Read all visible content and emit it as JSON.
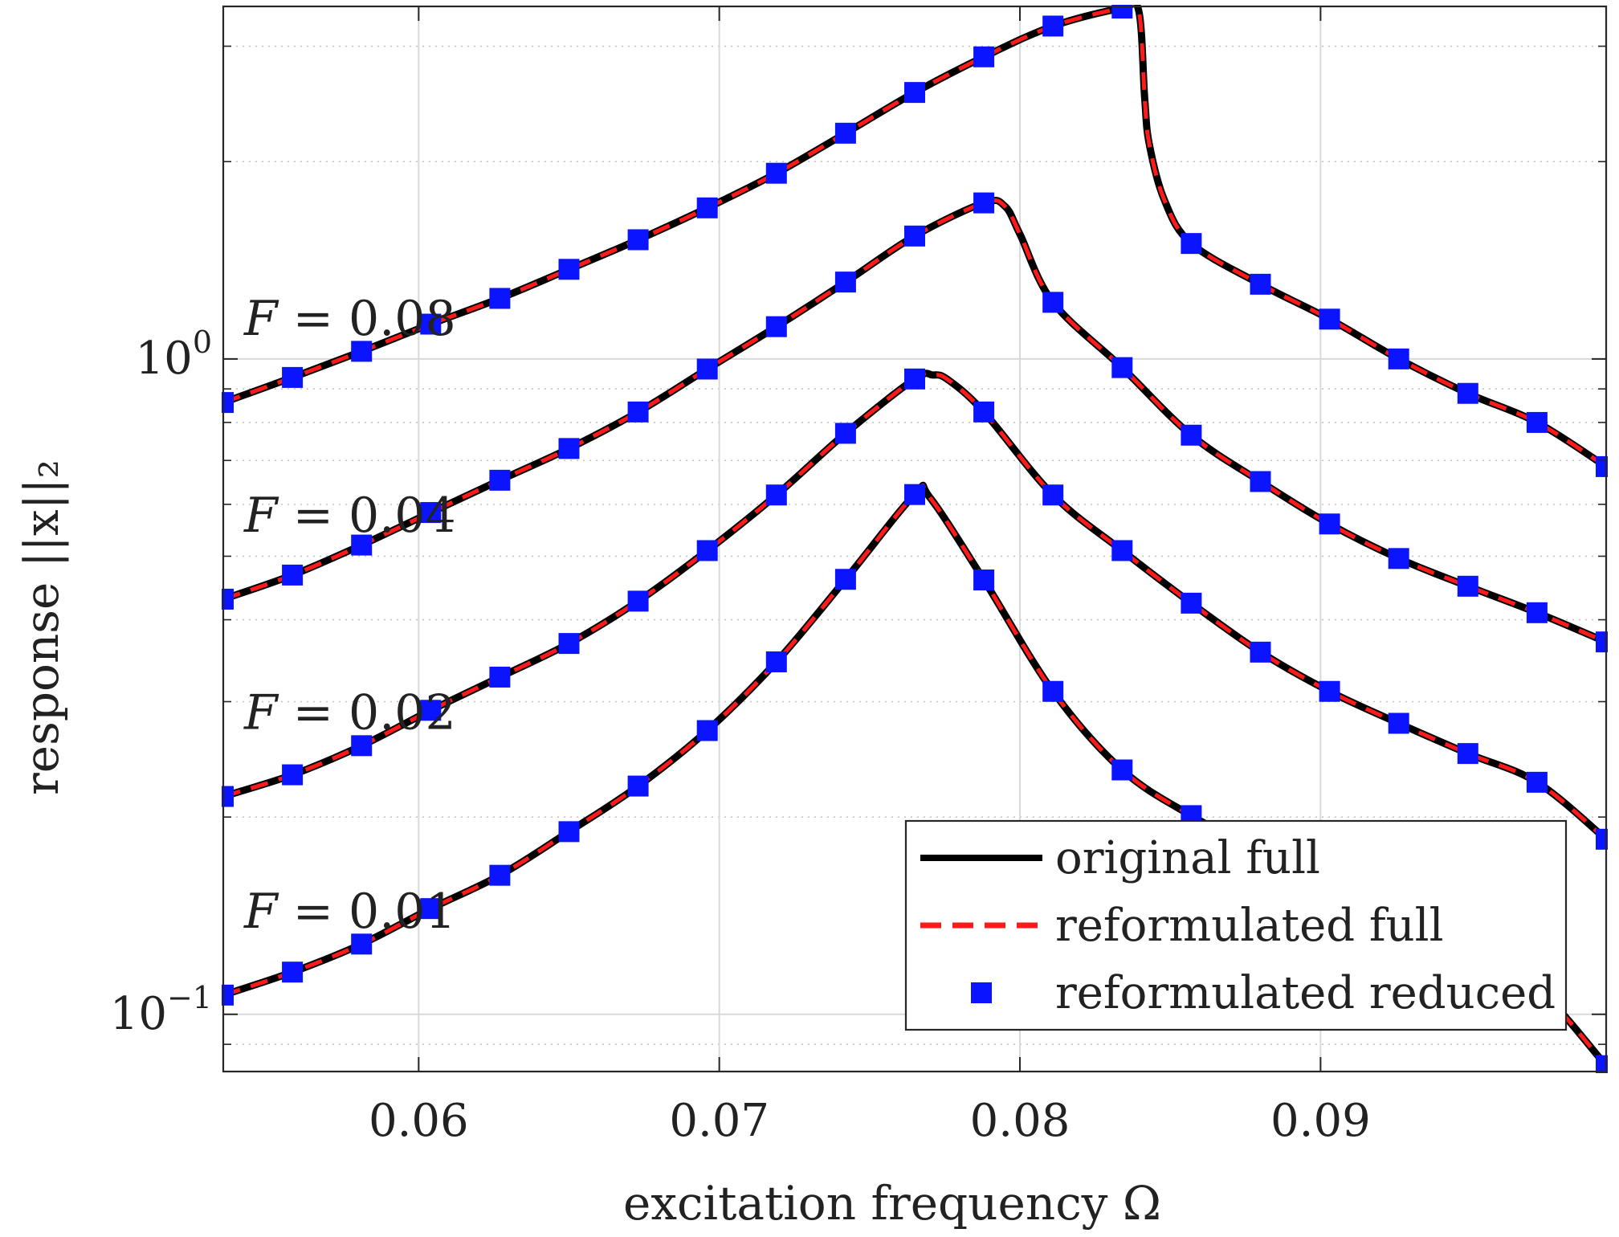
{
  "chart_data": {
    "type": "line",
    "title": "",
    "xlabel": "excitation frequency Ω",
    "ylabel": "response ||x||₂",
    "xlim": [
      0.0535,
      0.0995
    ],
    "ylim": [
      0.0818,
      3.45
    ],
    "yscale": "log",
    "xticks": [
      0.06,
      0.07,
      0.08,
      0.09
    ],
    "xtick_labels": [
      "0.06",
      "0.07",
      "0.08",
      "0.09"
    ],
    "yticks": [
      {
        "value": 1,
        "base": "10",
        "exp": "0"
      },
      {
        "value": 0.1,
        "base": "10",
        "exp": "−1"
      }
    ],
    "grid": true,
    "minor_grid": true,
    "legend": {
      "position": "bottom-right",
      "entries": [
        {
          "label": "original full",
          "style": "solid",
          "color": "#000000"
        },
        {
          "label": "reformulated full",
          "style": "dashed",
          "color": "#ff1a1a"
        },
        {
          "label": "reformulated reduced",
          "style": "square-marker",
          "color": "#0a14ff"
        }
      ]
    },
    "series": [
      {
        "curve_label": "F = 0.08",
        "x": [
          0.0535,
          0.0558,
          0.0581,
          0.0604,
          0.0627,
          0.065,
          0.0673,
          0.0696,
          0.0719,
          0.0742,
          0.0765,
          0.0788,
          0.0811,
          0.0834,
          0.08395,
          0.08415,
          0.0843,
          0.0848,
          0.0857,
          0.088,
          0.0903,
          0.0926,
          0.0949,
          0.0972,
          0.0995
        ],
        "y": [
          0.858,
          0.937,
          1.027,
          1.13,
          1.237,
          1.37,
          1.52,
          1.7,
          1.92,
          2.21,
          2.55,
          2.89,
          3.22,
          3.43,
          3.4,
          2.5,
          2.13,
          1.75,
          1.5,
          1.3,
          1.15,
          1.0,
          0.886,
          0.8,
          0.685
        ],
        "marker_x": [
          0.0535,
          0.0558,
          0.0581,
          0.0604,
          0.0627,
          0.065,
          0.0673,
          0.0696,
          0.0719,
          0.0742,
          0.0765,
          0.0788,
          0.0811,
          0.0834,
          0.0857,
          0.088,
          0.0903,
          0.0926,
          0.0949,
          0.0972,
          0.0995
        ],
        "marker_y": [
          0.858,
          0.937,
          1.027,
          1.13,
          1.237,
          1.37,
          1.52,
          1.7,
          1.92,
          2.21,
          2.55,
          2.89,
          3.22,
          3.43,
          1.5,
          1.3,
          1.15,
          1.0,
          0.886,
          0.8,
          0.685
        ]
      },
      {
        "curve_label": "F = 0.04",
        "x": [
          0.0535,
          0.0558,
          0.0581,
          0.0604,
          0.0627,
          0.065,
          0.0673,
          0.0696,
          0.0719,
          0.0742,
          0.0765,
          0.0788,
          0.0795,
          0.08,
          0.0811,
          0.0834,
          0.0857,
          0.088,
          0.0903,
          0.0926,
          0.0949,
          0.0972,
          0.0995
        ],
        "y": [
          0.43,
          0.468,
          0.52,
          0.583,
          0.653,
          0.73,
          0.83,
          0.965,
          1.12,
          1.31,
          1.54,
          1.73,
          1.71,
          1.55,
          1.22,
          0.97,
          0.765,
          0.65,
          0.56,
          0.496,
          0.45,
          0.41,
          0.37
        ],
        "marker_x": [
          0.0535,
          0.0558,
          0.0581,
          0.0604,
          0.0627,
          0.065,
          0.0673,
          0.0696,
          0.0719,
          0.0742,
          0.0765,
          0.0788,
          0.0811,
          0.0834,
          0.0857,
          0.088,
          0.0903,
          0.0926,
          0.0949,
          0.0972,
          0.0995
        ],
        "marker_y": [
          0.43,
          0.468,
          0.52,
          0.583,
          0.653,
          0.73,
          0.83,
          0.965,
          1.12,
          1.31,
          1.54,
          1.73,
          1.22,
          0.97,
          0.765,
          0.65,
          0.56,
          0.496,
          0.45,
          0.41,
          0.37
        ]
      },
      {
        "curve_label": "F = 0.02",
        "x": [
          0.0535,
          0.0558,
          0.0581,
          0.0604,
          0.0627,
          0.065,
          0.0673,
          0.0696,
          0.0719,
          0.0742,
          0.0765,
          0.0771,
          0.0776,
          0.0788,
          0.0811,
          0.0834,
          0.0857,
          0.088,
          0.0903,
          0.0926,
          0.0949,
          0.0972,
          0.0995
        ],
        "y": [
          0.215,
          0.232,
          0.257,
          0.291,
          0.327,
          0.368,
          0.427,
          0.51,
          0.62,
          0.77,
          0.932,
          0.945,
          0.93,
          0.83,
          0.62,
          0.51,
          0.424,
          0.357,
          0.311,
          0.278,
          0.25,
          0.226,
          0.185
        ],
        "marker_x": [
          0.0535,
          0.0558,
          0.0581,
          0.0604,
          0.0627,
          0.065,
          0.0673,
          0.0696,
          0.0719,
          0.0742,
          0.0765,
          0.0788,
          0.0811,
          0.0834,
          0.0857,
          0.088,
          0.0903,
          0.0926,
          0.0949,
          0.0972,
          0.0995
        ],
        "marker_y": [
          0.215,
          0.232,
          0.257,
          0.291,
          0.327,
          0.368,
          0.427,
          0.51,
          0.62,
          0.77,
          0.932,
          0.83,
          0.62,
          0.51,
          0.424,
          0.357,
          0.311,
          0.278,
          0.25,
          0.226,
          0.185
        ]
      },
      {
        "curve_label": "F = 0.01",
        "x": [
          0.0535,
          0.0558,
          0.0581,
          0.0604,
          0.0627,
          0.065,
          0.0673,
          0.0696,
          0.0719,
          0.0742,
          0.0765,
          0.077,
          0.0788,
          0.0811,
          0.0834,
          0.0857,
          0.088,
          0.0903,
          0.0926,
          0.0949,
          0.0972,
          0.0995
        ],
        "y": [
          0.107,
          0.116,
          0.128,
          0.145,
          0.163,
          0.19,
          0.223,
          0.271,
          0.345,
          0.461,
          0.621,
          0.615,
          0.46,
          0.311,
          0.236,
          0.201,
          0.177,
          0.16,
          0.143,
          0.128,
          0.11,
          0.0835
        ],
        "marker_x": [
          0.0535,
          0.0558,
          0.0581,
          0.0604,
          0.0627,
          0.065,
          0.0673,
          0.0696,
          0.0719,
          0.0742,
          0.0765,
          0.0788,
          0.0811,
          0.0834,
          0.0857,
          0.088,
          0.0903,
          0.0926,
          0.0949,
          0.0972,
          0.0995
        ],
        "marker_y": [
          0.107,
          0.116,
          0.128,
          0.145,
          0.163,
          0.19,
          0.223,
          0.271,
          0.345,
          0.461,
          0.621,
          0.46,
          0.311,
          0.236,
          0.201,
          0.177,
          0.16,
          0.143,
          0.128,
          0.11,
          0.0835
        ]
      }
    ]
  }
}
